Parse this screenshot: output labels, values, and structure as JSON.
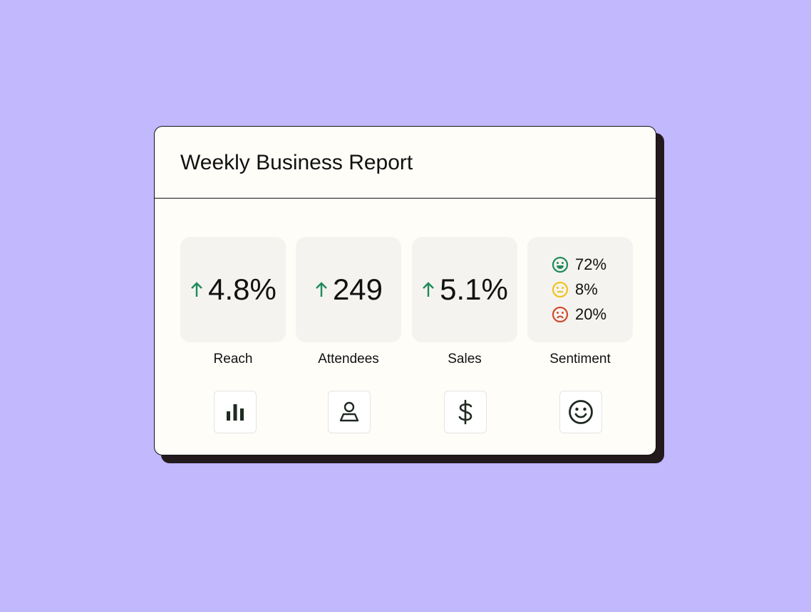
{
  "title": "Weekly Business Report",
  "metrics": [
    {
      "value": "4.8%",
      "label": "Reach"
    },
    {
      "value": "249",
      "label": "Attendees"
    },
    {
      "value": "5.1%",
      "label": "Sales"
    }
  ],
  "sentiment": {
    "values": [
      "72%",
      "8%",
      "20%"
    ],
    "label": "Sentiment"
  }
}
